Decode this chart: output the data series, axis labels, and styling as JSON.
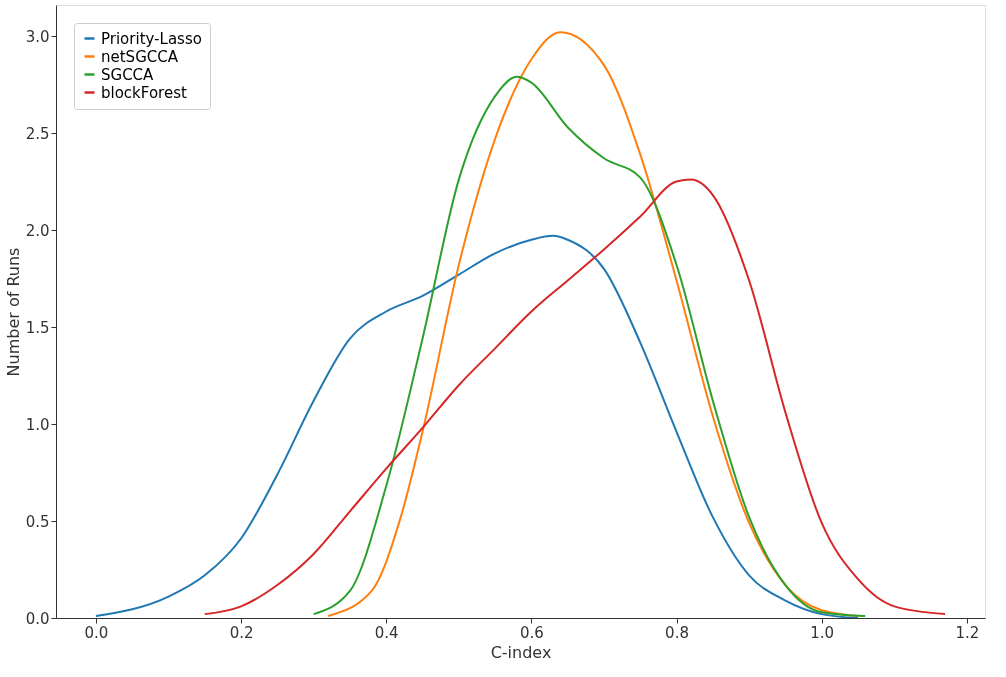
{
  "chart_data": {
    "type": "line",
    "xlabel": "C-index",
    "ylabel": "Number of Runs",
    "legend": "top left",
    "grid": false,
    "marker": "none",
    "line_style": "solid",
    "xlim": [
      -0.055,
      1.225
    ],
    "ylim": [
      0,
      3.16
    ],
    "xticks": [
      {
        "value": 0,
        "label": "0.0"
      },
      {
        "value": 0.2,
        "label": "0.2"
      },
      {
        "value": 0.4,
        "label": "0.4"
      },
      {
        "value": 0.6,
        "label": "0.6"
      },
      {
        "value": 0.8,
        "label": "0.8"
      },
      {
        "value": 1.0,
        "label": "1.0"
      },
      {
        "value": 1.2,
        "label": "1.2"
      }
    ],
    "yticks": [
      {
        "value": 0,
        "label": "0.0"
      },
      {
        "value": 0.5,
        "label": "0.5"
      },
      {
        "value": 1.0,
        "label": "1.0"
      },
      {
        "value": 1.5,
        "label": "1.5"
      },
      {
        "value": 2.0,
        "label": "2.0"
      },
      {
        "value": 2.5,
        "label": "2.5"
      },
      {
        "value": 3.0,
        "label": "3.0"
      }
    ],
    "series": [
      {
        "name": "Priority-Lasso",
        "color": "#1f77b4",
        "x": [
          0,
          0.1,
          0.15,
          0.2,
          0.25,
          0.3,
          0.35,
          0.4,
          0.45,
          0.5,
          0.55,
          0.6,
          0.63,
          0.65,
          0.7,
          0.75,
          0.8,
          0.85,
          0.9,
          0.95,
          1.0,
          1.05
        ],
        "values": [
          0.01,
          0.11,
          0.22,
          0.41,
          0.74,
          1.12,
          1.44,
          1.58,
          1.66,
          1.77,
          1.88,
          1.95,
          1.97,
          1.95,
          1.8,
          1.42,
          0.96,
          0.52,
          0.22,
          0.09,
          0.02,
          0.0
        ]
      },
      {
        "name": "netSGCCA",
        "color": "#ff7f0e",
        "x": [
          0.32,
          0.38,
          0.42,
          0.45,
          0.5,
          0.55,
          0.6,
          0.64,
          0.7,
          0.75,
          0.8,
          0.85,
          0.9,
          0.95,
          1.0,
          1.05
        ],
        "values": [
          0.01,
          0.14,
          0.52,
          0.96,
          1.82,
          2.47,
          2.88,
          3.02,
          2.85,
          2.39,
          1.74,
          1.04,
          0.49,
          0.17,
          0.04,
          0.01
        ]
      },
      {
        "name": "SGCCA",
        "color": "#2ca02c",
        "x": [
          0.3,
          0.35,
          0.4,
          0.45,
          0.5,
          0.55,
          0.58,
          0.6,
          0.65,
          0.7,
          0.75,
          0.8,
          0.85,
          0.9,
          0.95,
          1.0,
          1.06
        ],
        "values": [
          0.02,
          0.14,
          0.68,
          1.44,
          2.26,
          2.69,
          2.79,
          2.76,
          2.53,
          2.37,
          2.27,
          1.82,
          1.12,
          0.52,
          0.17,
          0.03,
          0.01
        ]
      },
      {
        "name": "blockForest",
        "color": "#d62728",
        "x": [
          0.15,
          0.2,
          0.25,
          0.3,
          0.35,
          0.4,
          0.45,
          0.5,
          0.55,
          0.6,
          0.65,
          0.7,
          0.75,
          0.8,
          0.82,
          0.85,
          0.9,
          0.95,
          1.0,
          1.05,
          1.1,
          1.17
        ],
        "values": [
          0.02,
          0.06,
          0.17,
          0.33,
          0.55,
          0.77,
          0.98,
          1.2,
          1.39,
          1.58,
          1.74,
          1.9,
          2.07,
          2.25,
          2.26,
          2.18,
          1.74,
          1.06,
          0.49,
          0.2,
          0.06,
          0.02
        ]
      }
    ]
  }
}
